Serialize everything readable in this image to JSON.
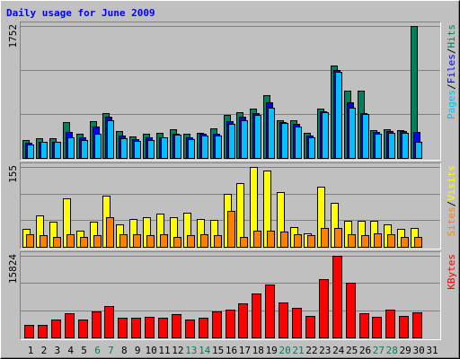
{
  "chart_data": {
    "type": "bar",
    "title": "Daily usage for June 2009",
    "title_color": "#0000ff",
    "legend_separator": "/",
    "categories": [
      "1",
      "2",
      "3",
      "4",
      "5",
      "6",
      "7",
      "8",
      "9",
      "10",
      "11",
      "12",
      "13",
      "14",
      "15",
      "16",
      "17",
      "18",
      "19",
      "20",
      "21",
      "22",
      "23",
      "24",
      "25",
      "26",
      "27",
      "28",
      "29",
      "30",
      "31"
    ],
    "category_colors": [
      "#000000",
      "#000000",
      "#000000",
      "#000000",
      "#000000",
      "#00805c",
      "#00805c",
      "#000000",
      "#000000",
      "#000000",
      "#000000",
      "#000000",
      "#00805c",
      "#00805c",
      "#000000",
      "#000000",
      "#000000",
      "#000000",
      "#000000",
      "#00805c",
      "#00805c",
      "#000000",
      "#000000",
      "#000000",
      "#000000",
      "#000000",
      "#00805c",
      "#00805c",
      "#000000",
      "#000000",
      "#000000"
    ],
    "grid": true,
    "panels": [
      {
        "ylim": [
          0,
          1752
        ],
        "yticks": [
          1752
        ],
        "series": [
          {
            "name": "Pages",
            "color": "#00c0ff",
            "values": [
              181,
              217,
              217,
              278,
              242,
              326,
              495,
              266,
              230,
              242,
              278,
              314,
              254,
              302,
              302,
              447,
              495,
              568,
              664,
              459,
              423,
              278,
              604,
              1148,
              664,
              580,
              326,
              338,
              338,
              217,
              null
            ]
          },
          {
            "name": "Files",
            "color": "#0000ff",
            "values": [
              205,
              217,
              217,
              350,
              278,
              423,
              544,
              302,
              254,
              278,
              278,
              326,
              278,
              326,
              326,
              483,
              544,
              592,
              737,
              471,
              447,
              302,
              616,
              1172,
              737,
              592,
              350,
              362,
              362,
              350,
              null
            ]
          },
          {
            "name": "Hits",
            "color": "#00805c",
            "values": [
              242,
              266,
              266,
              471,
              326,
              483,
              592,
              362,
              290,
              326,
              338,
              387,
              326,
              338,
              399,
              568,
              604,
              652,
              833,
              495,
              495,
              338,
              652,
              1232,
              894,
              894,
              374,
              387,
              374,
              1752,
              null
            ]
          }
        ]
      },
      {
        "ylim": [
          0,
          155
        ],
        "yticks": [
          155
        ],
        "series": [
          {
            "name": "Sites",
            "color": "#ff8000",
            "values": [
              24,
              22,
              20,
              24,
              20,
              22,
              58,
              24,
              24,
              22,
              24,
              20,
              22,
              24,
              22,
              70,
              20,
              31,
              31,
              29,
              24,
              22,
              36,
              37,
              24,
              22,
              26,
              24,
              19,
              20,
              null
            ]
          },
          {
            "name": "Visits",
            "color": "#ffff00",
            "values": [
              34,
              61,
              48,
              94,
              32,
              48,
              100,
              44,
              54,
              58,
              65,
              58,
              66,
              54,
              53,
              102,
              124,
              155,
              148,
              107,
              39,
              26,
              116,
              85,
              51,
              51,
              51,
              44,
              34,
              37,
              null
            ]
          }
        ]
      },
      {
        "ylim": [
          0,
          15824
        ],
        "yticks": [
          15824
        ],
        "series": [
          {
            "name": "KBytes",
            "color": "#ff0000",
            "values": [
              2461,
              2461,
              3516,
              4747,
              3516,
              5098,
              6153,
              3868,
              3868,
              4043,
              3868,
              4571,
              3516,
              3868,
              5098,
              5450,
              6681,
              8439,
              10197,
              6856,
              5802,
              4219,
              11252,
              15824,
              10548,
              4747,
              4043,
              5450,
              4219,
              4923,
              null
            ]
          }
        ]
      }
    ]
  }
}
